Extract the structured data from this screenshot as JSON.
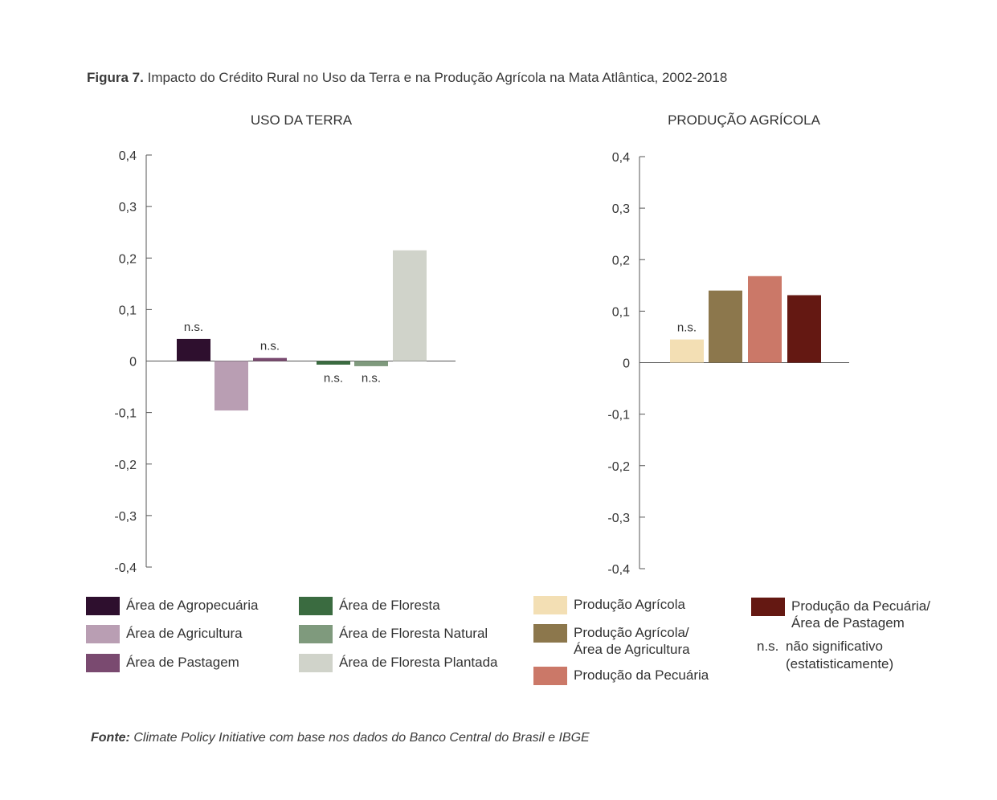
{
  "figure": {
    "number_label": "Figura 7.",
    "title": "Impacto do Crédito Rural no Uso da Terra e na Produção Agrícola na Mata Atlântica, 2002-2018"
  },
  "chart_data": [
    {
      "type": "bar",
      "title": "USO DA TERRA",
      "ylim": [
        -0.4,
        0.4
      ],
      "yticks": [
        "0,4",
        "0,3",
        "0,2",
        "0,1",
        "0",
        "-0,1",
        "-0,2",
        "-0,3",
        "-0,4"
      ],
      "grid": false,
      "series": [
        {
          "name": "Área de Agropecuária",
          "value": 0.043,
          "color": "#2e0f2e",
          "annotation": "n.s.",
          "group": 1
        },
        {
          "name": "Área de Agricultura",
          "value": -0.096,
          "color": "#b99eb3",
          "annotation": "",
          "group": 1
        },
        {
          "name": "Área de Pastagem",
          "value": 0.006,
          "color": "#7a4a70",
          "annotation": "n.s.",
          "group": 1
        },
        {
          "name": "Área de Floresta",
          "value": -0.007,
          "color": "#3a6b40",
          "annotation": "n.s.",
          "group": 2
        },
        {
          "name": "Área de Floresta Natural",
          "value": -0.01,
          "color": "#7f9a7d",
          "annotation": "n.s.",
          "group": 2
        },
        {
          "name": "Área de Floresta Plantada",
          "value": 0.215,
          "color": "#d0d3ca",
          "annotation": "",
          "group": 2
        }
      ]
    },
    {
      "type": "bar",
      "title": "PRODUÇÃO AGRÍCOLA",
      "ylim": [
        -0.4,
        0.4
      ],
      "yticks": [
        "0,4",
        "0,3",
        "0,2",
        "0,1",
        "0",
        "-0,1",
        "-0,2",
        "-0,3",
        "-0,4"
      ],
      "grid": false,
      "series": [
        {
          "name": "Produção Agrícola",
          "value": 0.045,
          "color": "#f3dfb4",
          "annotation": "n.s.",
          "group": 1
        },
        {
          "name": "Produção Agrícola/\nÁrea de Agricultura",
          "value": 0.14,
          "color": "#8c774c",
          "annotation": "",
          "group": 1
        },
        {
          "name": "Produção da Pecuária",
          "value": 0.168,
          "color": "#cb7868",
          "annotation": "",
          "group": 1
        },
        {
          "name": "Produção da Pecuária/\nÁrea de Pastagem",
          "value": 0.131,
          "color": "#641812",
          "annotation": "",
          "group": 1
        }
      ]
    }
  ],
  "legend": {
    "ns_abbr": "n.s.",
    "ns_desc": "não significativo\n(estatisticamente)"
  },
  "source": {
    "label": "Fonte:",
    "text": "Climate Policy Initiative com base nos dados do Banco Central do Brasil e IBGE"
  }
}
